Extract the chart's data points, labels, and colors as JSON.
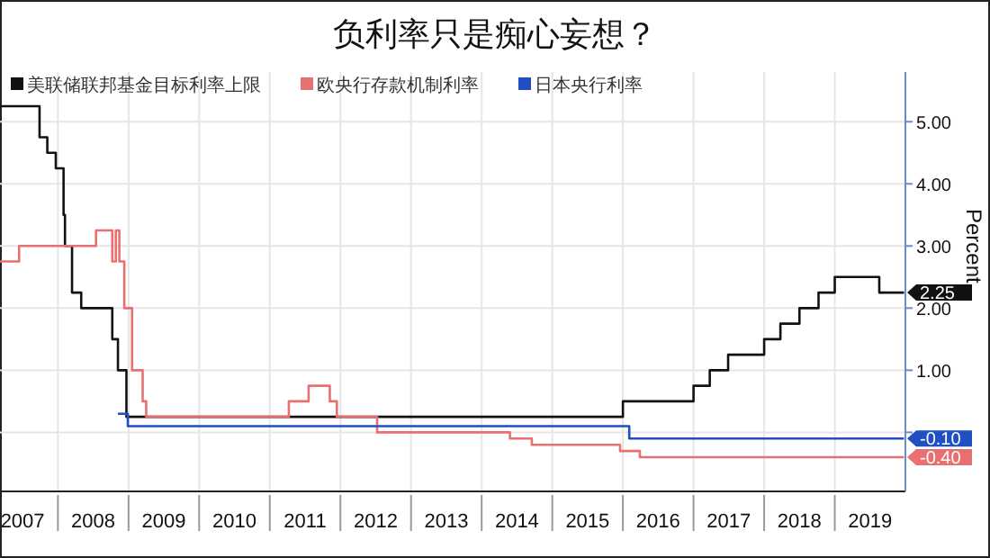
{
  "chart_data": {
    "type": "step",
    "title": "负利率只是痴心妄想？",
    "ylabel": "Percent",
    "xlim": [
      2007.18,
      2020.0
    ],
    "ylim": [
      -0.95,
      5.8
    ],
    "xticks": [
      {
        "value": 2007.5,
        "label": "2007"
      },
      {
        "value": 2008,
        "label": null
      },
      {
        "value": 2008.5,
        "label": "2008"
      },
      {
        "value": 2009,
        "label": null
      },
      {
        "value": 2009.5,
        "label": "2009"
      },
      {
        "value": 2010,
        "label": null
      },
      {
        "value": 2010.5,
        "label": "2010"
      },
      {
        "value": 2011,
        "label": null
      },
      {
        "value": 2011.5,
        "label": "2011"
      },
      {
        "value": 2012,
        "label": null
      },
      {
        "value": 2012.5,
        "label": "2012"
      },
      {
        "value": 2013,
        "label": null
      },
      {
        "value": 2013.5,
        "label": "2013"
      },
      {
        "value": 2014,
        "label": null
      },
      {
        "value": 2014.5,
        "label": "2014"
      },
      {
        "value": 2015,
        "label": null
      },
      {
        "value": 2015.5,
        "label": "2015"
      },
      {
        "value": 2016,
        "label": null
      },
      {
        "value": 2016.5,
        "label": "2016"
      },
      {
        "value": 2017,
        "label": null
      },
      {
        "value": 2017.5,
        "label": "2017"
      },
      {
        "value": 2018,
        "label": null
      },
      {
        "value": 2018.5,
        "label": "2018"
      },
      {
        "value": 2019,
        "label": null
      },
      {
        "value": 2019.5,
        "label": "2019"
      }
    ],
    "yticks": [
      {
        "value": 0,
        "label": null
      },
      {
        "value": 1,
        "label": "1.00"
      },
      {
        "value": 2,
        "label": "2.00"
      },
      {
        "value": 3,
        "label": "3.00"
      },
      {
        "value": 4,
        "label": "4.00"
      },
      {
        "value": 5,
        "label": "5.00"
      }
    ],
    "grid": true,
    "legend": "top",
    "series": [
      {
        "name": "美联储联邦基金目标利率上限",
        "color": "#111111",
        "x": [
          2007.18,
          2007.74,
          2007.85,
          2007.97,
          2008.08,
          2008.1,
          2008.2,
          2008.33,
          2008.77,
          2008.85,
          2008.97,
          2016.0,
          2017.0,
          2017.23,
          2017.49,
          2018.0,
          2018.23,
          2018.5,
          2018.77,
          2019.0,
          2019.63,
          2019.98
        ],
        "values": [
          5.25,
          4.75,
          4.5,
          4.25,
          3.5,
          3.0,
          2.25,
          2.0,
          1.5,
          1.0,
          0.25,
          0.5,
          0.75,
          1.0,
          1.25,
          1.5,
          1.75,
          2.0,
          2.25,
          2.5,
          2.25,
          2.25
        ],
        "value_labels": [
          null,
          null,
          null,
          null,
          null,
          null,
          null,
          null,
          null,
          null,
          null,
          null,
          null,
          null,
          null,
          null,
          null,
          null,
          null,
          null,
          null,
          "2.25"
        ]
      },
      {
        "name": "欧央行存款机制利率",
        "color": "#e87070",
        "x": [
          2007.18,
          2007.45,
          2008.54,
          2008.77,
          2008.82,
          2008.87,
          2008.94,
          2009.05,
          2009.2,
          2009.25,
          2011.27,
          2011.55,
          2011.85,
          2011.95,
          2012.52,
          2014.4,
          2014.71,
          2015.96,
          2016.24,
          2019.98
        ],
        "values": [
          2.75,
          3.0,
          3.25,
          2.75,
          3.25,
          2.75,
          2.0,
          1.0,
          0.5,
          0.25,
          0.5,
          0.75,
          0.5,
          0.25,
          0.0,
          -0.1,
          -0.2,
          -0.3,
          -0.4,
          -0.4
        ],
        "value_labels": [
          null,
          null,
          null,
          null,
          null,
          null,
          null,
          null,
          null,
          null,
          null,
          null,
          null,
          null,
          null,
          null,
          null,
          null,
          null,
          "-0.40"
        ]
      },
      {
        "name": "日本央行利率",
        "color": "#1f4fc0",
        "x": [
          2008.85,
          2008.99,
          2016.09,
          2019.98
        ],
        "values": [
          0.3,
          0.1,
          -0.1,
          -0.1
        ],
        "value_labels": [
          null,
          null,
          null,
          "-0.10"
        ]
      }
    ]
  }
}
